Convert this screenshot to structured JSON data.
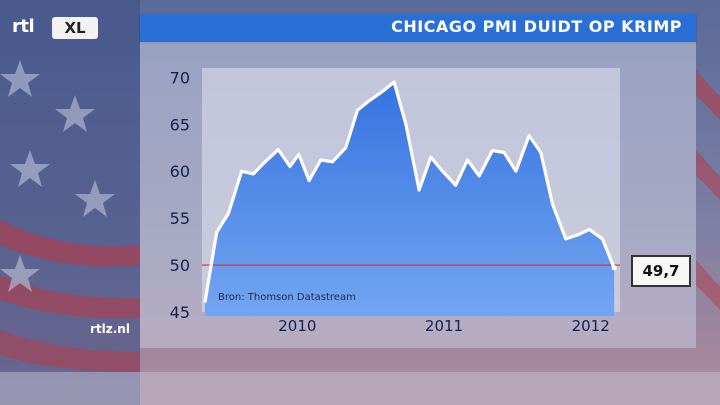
{
  "header": {
    "logo_rtl": "rtl",
    "logo_xl": "XL",
    "title": "CHICAGO PMI DUIDT OP KRIMP"
  },
  "footer": {
    "site": "rtlz.nl"
  },
  "source": "Bron: Thomson Datastream",
  "callout": {
    "label": "49,7"
  },
  "colors": {
    "title_bar": "#2a6fd6",
    "area_fill": "#3f7fe8",
    "line": "#ffffff",
    "reference_line": "#cc3333"
  },
  "chart_data": {
    "type": "area",
    "title": "CHICAGO PMI DUIDT OP KRIMP",
    "xlabel": "",
    "ylabel": "",
    "ylim": [
      45,
      71
    ],
    "xlim": [
      2009.4,
      2012.25
    ],
    "y_ticks": [
      45,
      50,
      55,
      60,
      65,
      70
    ],
    "x_ticks": [
      2010,
      2011,
      2012
    ],
    "reference_line": 50,
    "grid": false,
    "last_value_label": "49,7",
    "series": [
      {
        "x": [
          2009.42,
          2009.5,
          2009.58,
          2009.67,
          2009.75,
          2009.83,
          2009.92,
          2010.0,
          2010.06,
          2010.13,
          2010.21,
          2010.29,
          2010.38,
          2010.46,
          2010.54,
          2010.63,
          2010.71,
          2010.79,
          2010.88,
          2010.96,
          2011.04,
          2011.13,
          2011.21,
          2011.29,
          2011.38,
          2011.46,
          2011.54,
          2011.63,
          2011.71,
          2011.79,
          2011.88,
          2011.96,
          2012.04,
          2012.13,
          2012.21
        ],
        "values": [
          46.0,
          53.5,
          55.5,
          60.0,
          59.7,
          61.0,
          62.3,
          60.5,
          61.8,
          59.0,
          61.2,
          61.0,
          62.5,
          66.5,
          67.5,
          68.5,
          69.5,
          65.0,
          58.0,
          61.5,
          60.0,
          58.5,
          61.2,
          59.5,
          62.2,
          62.0,
          60.0,
          63.8,
          62.0,
          56.5,
          52.8,
          53.2,
          53.8,
          52.8,
          49.7
        ]
      }
    ]
  }
}
